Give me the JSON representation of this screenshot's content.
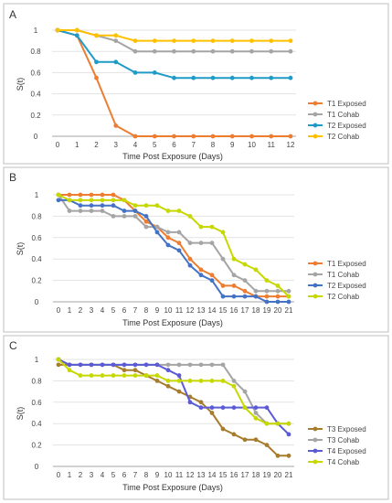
{
  "chart_data": [
    {
      "panel": "A",
      "type": "line",
      "ylabel": "S(t)",
      "xlabel": "Time Post Exposure (Days)",
      "ylim": [
        0,
        1
      ],
      "yticks": [
        "0",
        "0.2",
        "0.4",
        "0.6",
        "0.8",
        "1"
      ],
      "x": [
        0,
        1,
        2,
        3,
        4,
        5,
        6,
        7,
        8,
        9,
        10,
        11,
        12
      ],
      "xticks": [
        "0",
        "1",
        "2",
        "3",
        "4",
        "5",
        "6",
        "7",
        "8",
        "9",
        "10",
        "11",
        "12"
      ],
      "legend_position": "right",
      "series": [
        {
          "name": "T1 Exposed",
          "color": "#ED7D31",
          "x": [
            0,
            1,
            2,
            3,
            4,
            5,
            6,
            7,
            8,
            9,
            10,
            11,
            12
          ],
          "values": [
            1,
            0.95,
            0.55,
            0.1,
            0,
            0,
            0,
            0,
            0,
            0,
            0,
            0,
            0
          ]
        },
        {
          "name": "T1 Cohab",
          "color": "#A5A5A5",
          "x": [
            0,
            1,
            2,
            3,
            4,
            5,
            6,
            7,
            8,
            9,
            10,
            11,
            12
          ],
          "values": [
            1,
            1,
            0.95,
            0.9,
            0.8,
            0.8,
            0.8,
            0.8,
            0.8,
            0.8,
            0.8,
            0.8,
            0.8
          ]
        },
        {
          "name": "T2 Exposed",
          "color": "#1F9BC8",
          "x": [
            0,
            1,
            2,
            3,
            4,
            5,
            6,
            7,
            8,
            9,
            10,
            11,
            12
          ],
          "values": [
            1,
            0.95,
            0.7,
            0.7,
            0.6,
            0.6,
            0.55,
            0.55,
            0.55,
            0.55,
            0.55,
            0.55,
            0.55
          ]
        },
        {
          "name": "T2 Cohab",
          "color": "#FFC000",
          "x": [
            0,
            1,
            2,
            3,
            4,
            5,
            6,
            7,
            8,
            9,
            10,
            11,
            12
          ],
          "values": [
            1,
            1,
            0.95,
            0.95,
            0.9,
            0.9,
            0.9,
            0.9,
            0.9,
            0.9,
            0.9,
            0.9,
            0.9
          ]
        }
      ]
    },
    {
      "panel": "B",
      "type": "line",
      "ylabel": "S(t)",
      "xlabel": "Time Post Exposure (Days)",
      "ylim": [
        0,
        1
      ],
      "yticks": [
        "0",
        "0.2",
        "0.4",
        "0.6",
        "0.8",
        "1"
      ],
      "xticks": [
        "0",
        "1",
        "2",
        "3",
        "4",
        "5",
        "6",
        "7",
        "8",
        "9",
        "10",
        "11",
        "12",
        "13",
        "14",
        "15",
        "16",
        "17",
        "18",
        "19",
        "20",
        "21"
      ],
      "legend_position": "right",
      "series": [
        {
          "name": "T1 Exposed",
          "color": "#ED7D31",
          "x": [
            0,
            1,
            2,
            3,
            4,
            5,
            6,
            7,
            8,
            9,
            10,
            11,
            12,
            13,
            14,
            15,
            16,
            17,
            18,
            19,
            20,
            21
          ],
          "values": [
            1,
            1,
            1,
            1,
            1,
            1,
            0.95,
            0.85,
            0.75,
            0.7,
            0.6,
            0.55,
            0.4,
            0.3,
            0.25,
            0.15,
            0.15,
            0.1,
            0.05,
            0.05,
            0.05,
            0.05
          ]
        },
        {
          "name": "T1 Cohab",
          "color": "#A5A5A5",
          "x": [
            0,
            1,
            2,
            3,
            4,
            5,
            6,
            7,
            8,
            9,
            10,
            11,
            12,
            13,
            14,
            15,
            16,
            17,
            18,
            19,
            20,
            21
          ],
          "values": [
            1,
            0.85,
            0.85,
            0.85,
            0.85,
            0.8,
            0.8,
            0.8,
            0.7,
            0.7,
            0.65,
            0.65,
            0.55,
            0.55,
            0.55,
            0.4,
            0.25,
            0.2,
            0.1,
            0.1,
            0.1,
            0.1
          ]
        },
        {
          "name": "T2 Exposed",
          "color": "#4472C4",
          "x": [
            0,
            1,
            2,
            3,
            4,
            5,
            6,
            7,
            8,
            9,
            10,
            11,
            12,
            13,
            14,
            15,
            16,
            17,
            18,
            19,
            20,
            21
          ],
          "values": [
            0.95,
            0.95,
            0.9,
            0.9,
            0.9,
            0.9,
            0.85,
            0.85,
            0.8,
            0.65,
            0.53,
            0.48,
            0.34,
            0.25,
            0.2,
            0.05,
            0.05,
            0.05,
            0.05,
            0,
            0,
            0
          ]
        },
        {
          "name": "T2 Cohab",
          "color": "#C6D800",
          "x": [
            0,
            1,
            2,
            3,
            4,
            5,
            6,
            7,
            8,
            9,
            10,
            11,
            12,
            13,
            14,
            15,
            16,
            17,
            18,
            19,
            20,
            21
          ],
          "values": [
            1,
            0.95,
            0.95,
            0.95,
            0.95,
            0.95,
            0.95,
            0.9,
            0.9,
            0.9,
            0.85,
            0.85,
            0.8,
            0.7,
            0.7,
            0.65,
            0.4,
            0.35,
            0.3,
            0.2,
            0.15,
            0.05
          ]
        }
      ]
    },
    {
      "panel": "C",
      "type": "line",
      "ylabel": "S(t)",
      "xlabel": "Time Post Exposure (Days)",
      "ylim": [
        0,
        1
      ],
      "yticks": [
        "0",
        "0.2",
        "0.4",
        "0.6",
        "0.8",
        "1"
      ],
      "xticks": [
        "0",
        "1",
        "2",
        "3",
        "4",
        "5",
        "6",
        "7",
        "8",
        "9",
        "10",
        "11",
        "12",
        "13",
        "14",
        "15",
        "16",
        "17",
        "18",
        "19",
        "20",
        "21"
      ],
      "legend_position": "right",
      "series": [
        {
          "name": "T3 Exposed",
          "color": "#A67C2E",
          "x": [
            0,
            1,
            2,
            3,
            4,
            5,
            6,
            7,
            8,
            9,
            10,
            11,
            12,
            13,
            14,
            15,
            16,
            17,
            18,
            19,
            20,
            21
          ],
          "values": [
            0.95,
            0.95,
            0.95,
            0.95,
            0.95,
            0.95,
            0.9,
            0.9,
            0.85,
            0.8,
            0.75,
            0.7,
            0.65,
            0.6,
            0.5,
            0.35,
            0.3,
            0.25,
            0.25,
            0.2,
            0.1,
            0.1
          ]
        },
        {
          "name": "T3 Cohab",
          "color": "#A5A5A5",
          "x": [
            0,
            1,
            2,
            3,
            4,
            5,
            6,
            7,
            8,
            9,
            10,
            11,
            12,
            13,
            14,
            15,
            16,
            17,
            18,
            19,
            20,
            21
          ],
          "values": [
            1,
            0.95,
            0.95,
            0.95,
            0.95,
            0.95,
            0.95,
            0.95,
            0.95,
            0.95,
            0.95,
            0.95,
            0.95,
            0.95,
            0.95,
            0.95,
            0.8,
            0.7,
            0.5,
            0.4,
            0.4,
            0.4
          ]
        },
        {
          "name": "T4 Exposed",
          "color": "#5B5BD6",
          "x": [
            0,
            1,
            2,
            3,
            4,
            5,
            6,
            7,
            8,
            9,
            10,
            11,
            12,
            13,
            14,
            15,
            16,
            17,
            18,
            19,
            20,
            21
          ],
          "values": [
            1,
            0.95,
            0.95,
            0.95,
            0.95,
            0.95,
            0.95,
            0.95,
            0.95,
            0.95,
            0.9,
            0.85,
            0.6,
            0.55,
            0.55,
            0.55,
            0.55,
            0.55,
            0.55,
            0.55,
            0.4,
            0.3
          ]
        },
        {
          "name": "T4 Cohab",
          "color": "#C6D800",
          "x": [
            0,
            1,
            2,
            3,
            4,
            5,
            6,
            7,
            8,
            9,
            10,
            11,
            12,
            13,
            14,
            15,
            16,
            17,
            18,
            19,
            20,
            21
          ],
          "values": [
            1,
            0.9,
            0.85,
            0.85,
            0.85,
            0.85,
            0.85,
            0.85,
            0.85,
            0.85,
            0.8,
            0.8,
            0.8,
            0.8,
            0.8,
            0.8,
            0.75,
            0.55,
            0.45,
            0.4,
            0.4,
            0.4
          ]
        }
      ]
    }
  ]
}
